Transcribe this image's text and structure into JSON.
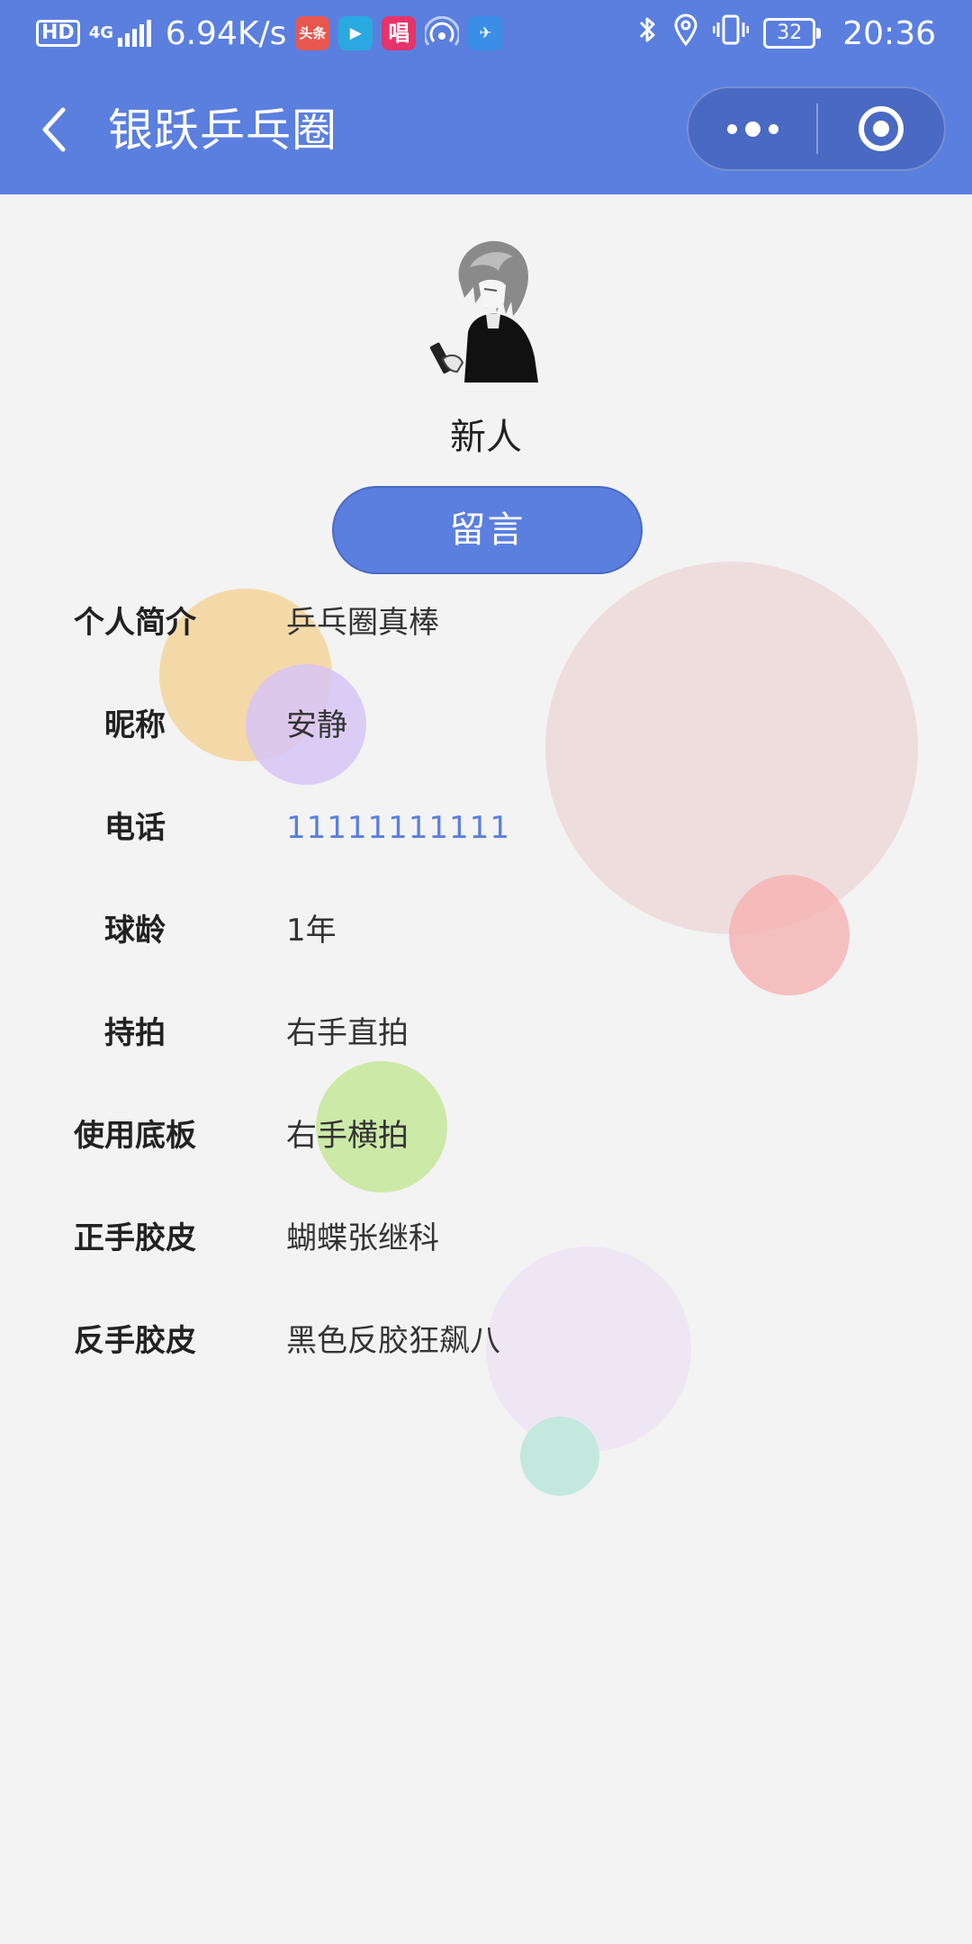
{
  "status_bar": {
    "hd": "HD",
    "network": "4G",
    "speed": "6.94K/s",
    "apps": [
      {
        "icon": "toutiao-icon",
        "label": "头条",
        "color": "#e8574f"
      },
      {
        "icon": "video-player-icon",
        "label": "▶",
        "color": "#2aa8e0"
      },
      {
        "icon": "sing-app-icon",
        "label": "唱",
        "color": "#e6336a"
      },
      {
        "icon": "hotspot-icon",
        "label": "",
        "color": ""
      },
      {
        "icon": "paper-plane-app-icon",
        "label": "✈",
        "color": "#3a8ee6"
      }
    ],
    "battery": "32",
    "time": "20:36"
  },
  "nav": {
    "title": "银跃乒乓圈"
  },
  "profile": {
    "nickname": "新人",
    "message_button": "留言"
  },
  "info": [
    {
      "label": "个人简介",
      "value": "乒乓圈真棒"
    },
    {
      "label": "昵称",
      "value": "安静"
    },
    {
      "label": "电话",
      "value": "11111111111"
    },
    {
      "label": "球龄",
      "value": "1年"
    },
    {
      "label": "持拍",
      "value": "右手直拍"
    },
    {
      "label": "使用底板",
      "value": "右手横拍"
    },
    {
      "label": "正手胶皮",
      "value": "蝴蝶张继科"
    },
    {
      "label": "反手胶皮",
      "value": "黑色反胶狂飙八"
    }
  ],
  "colors": {
    "primary": "#5b7fdf",
    "capsule": "#4a69c3",
    "background": "#f3f3f3",
    "bubble_orange": "#f4d7a2",
    "bubble_purple": "#dcc8f2",
    "bubble_pink_large": "#ecdcdc",
    "bubble_red": "#f4bcbc",
    "bubble_green": "#cde8a9",
    "bubble_lavender": "#efe6f4",
    "bubble_mint": "#bfe8de"
  }
}
